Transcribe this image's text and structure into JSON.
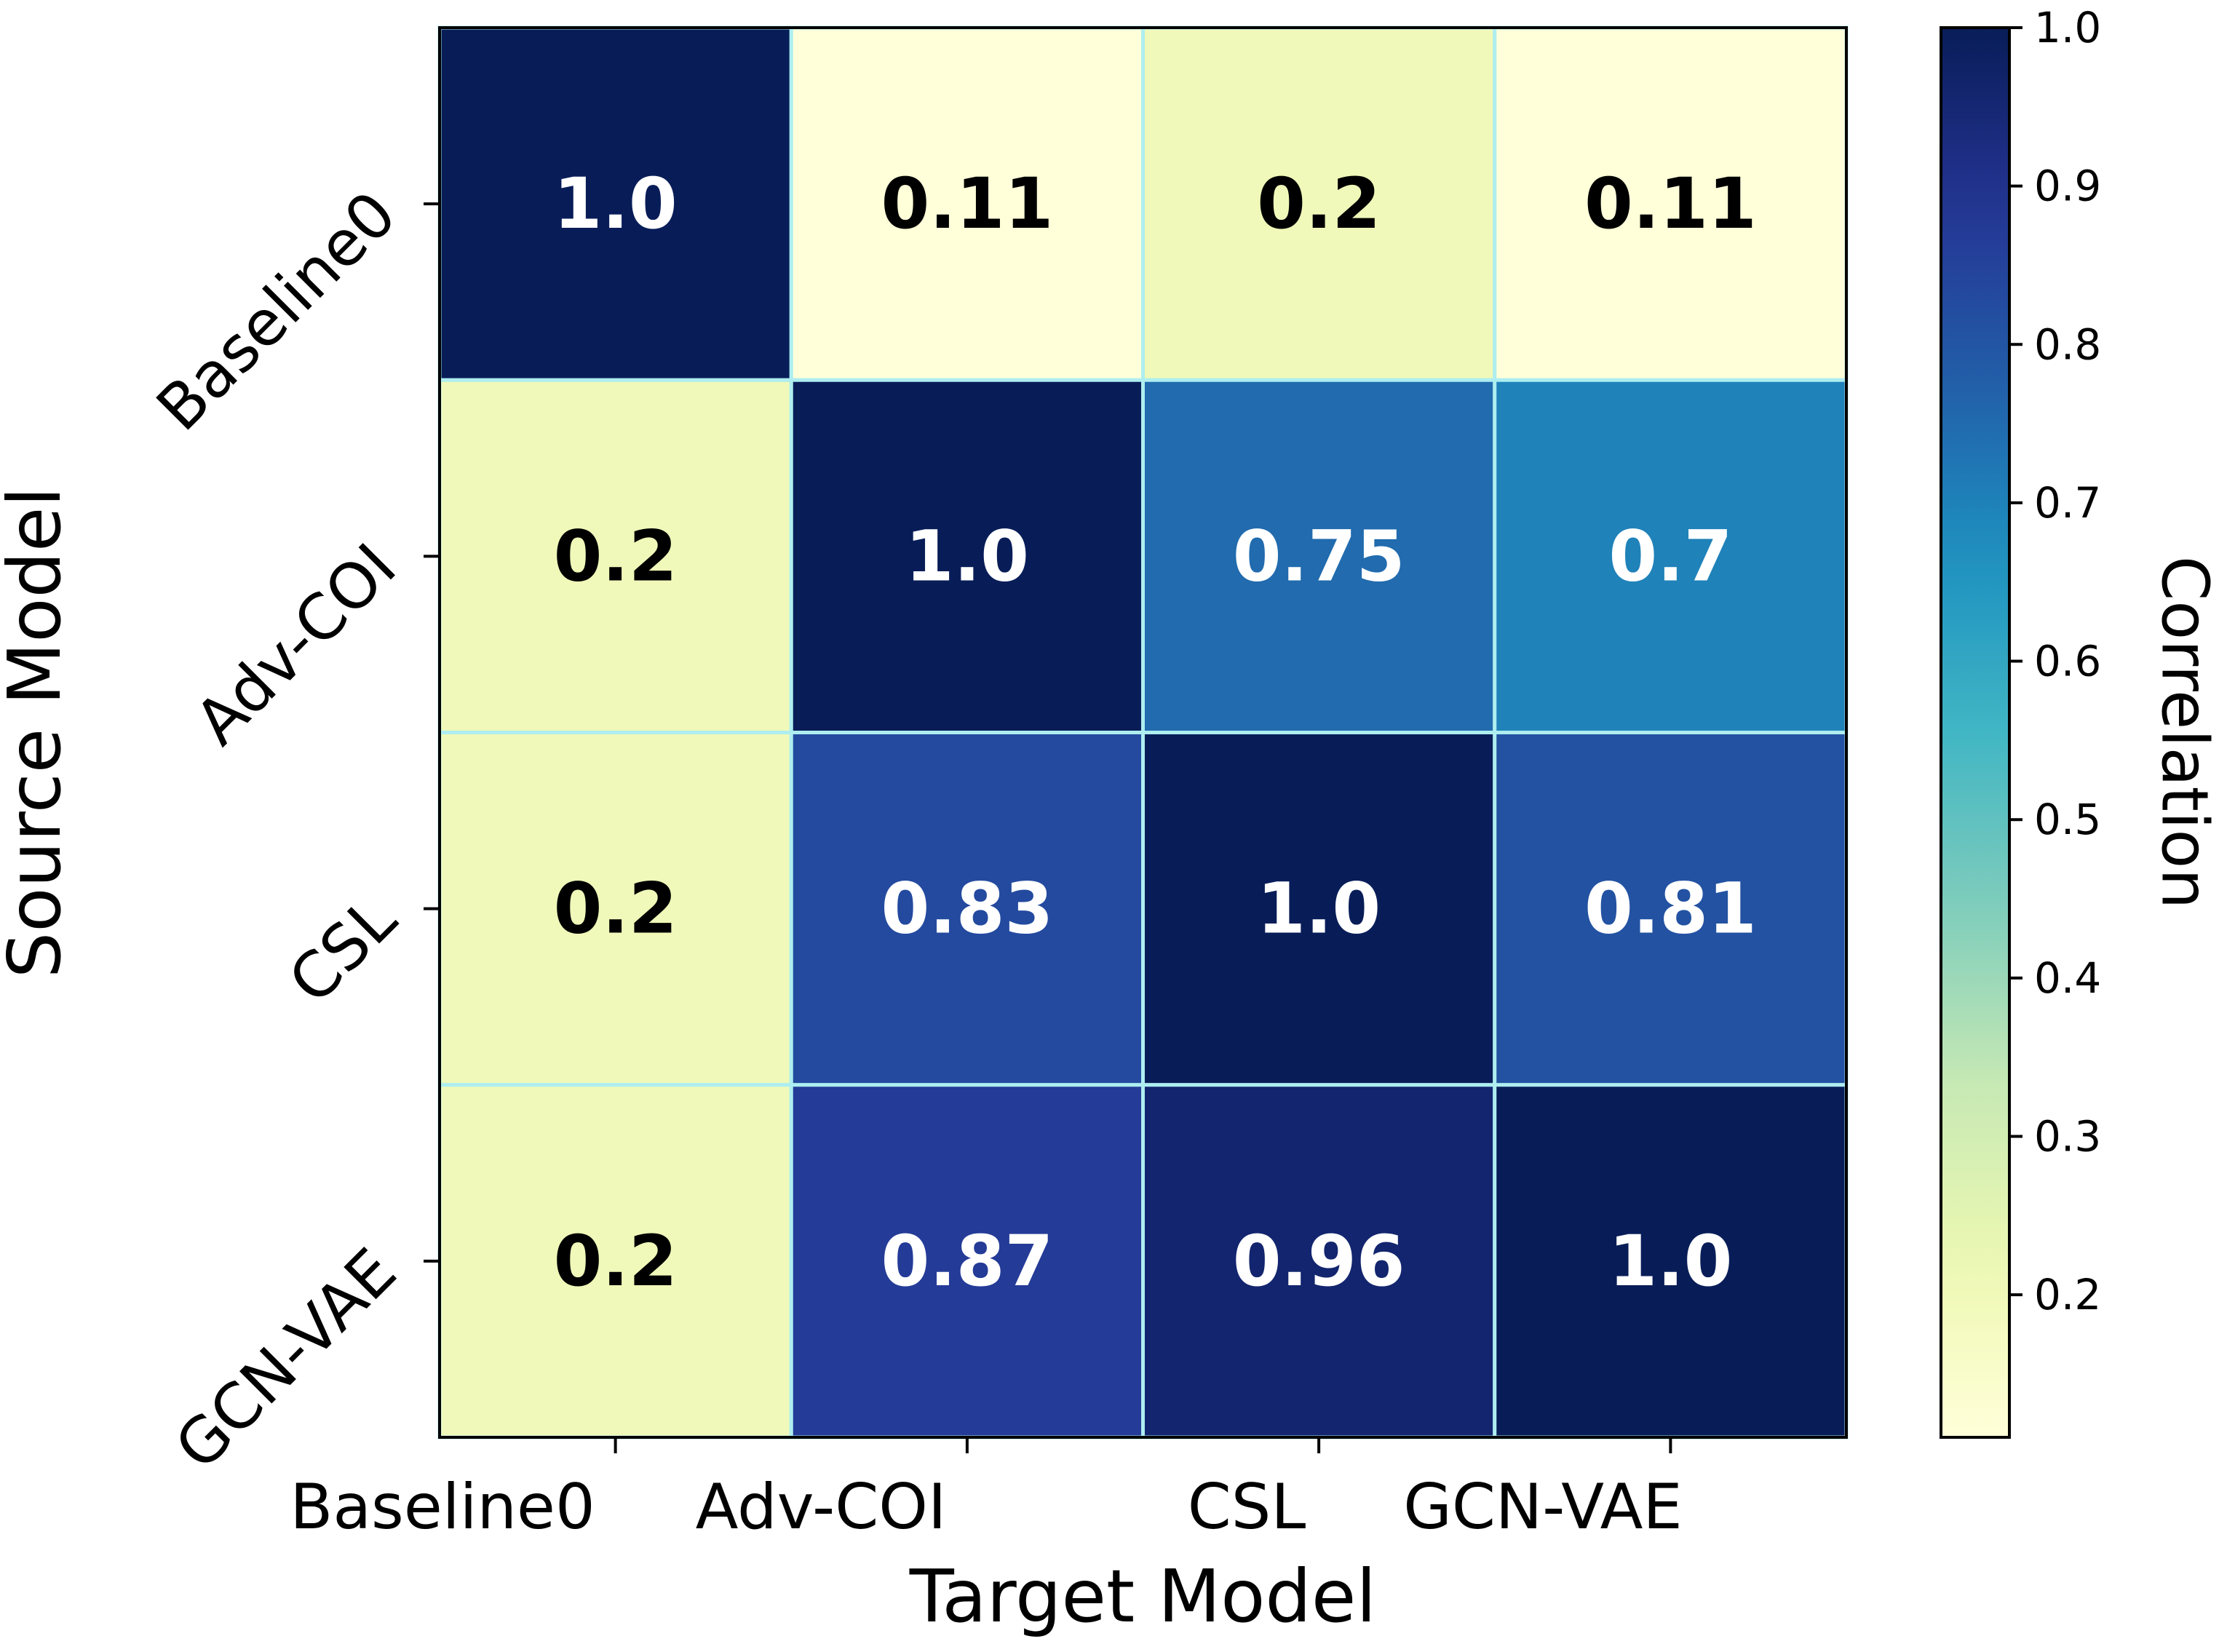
{
  "chart_data": {
    "type": "heatmap",
    "xlabel": "Target Model",
    "ylabel": "Source Model",
    "x_categories": [
      "Baseline0",
      "Adv-COI",
      "CSL",
      "GCN-VAE"
    ],
    "y_categories": [
      "Baseline0",
      "Adv-COI",
      "CSL",
      "GCN-VAE"
    ],
    "values": [
      [
        1.0,
        0.11,
        0.2,
        0.11
      ],
      [
        0.2,
        1.0,
        0.75,
        0.7
      ],
      [
        0.2,
        0.83,
        1.0,
        0.81
      ],
      [
        0.2,
        0.87,
        0.96,
        1.0
      ]
    ],
    "cell_labels": [
      [
        "1.0",
        "0.11",
        "0.2",
        "0.11"
      ],
      [
        "0.2",
        "1.0",
        "0.75",
        "0.7"
      ],
      [
        "0.2",
        "0.83",
        "1.0",
        "0.81"
      ],
      [
        "0.2",
        "0.87",
        "0.96",
        "1.0"
      ]
    ],
    "colorbar": {
      "label": "Correlation",
      "range": [
        0.11,
        1.0
      ],
      "ticks": [
        0.2,
        0.3,
        0.4,
        0.5,
        0.6,
        0.7,
        0.8,
        0.9,
        1.0
      ],
      "tick_labels": [
        "0.2",
        "0.3",
        "0.4",
        "0.5",
        "0.6",
        "0.7",
        "0.8",
        "0.9",
        "1.0"
      ],
      "colormap": "YlGnBu"
    },
    "colors": {
      "grid_lines": "#aeeef0",
      "text_dark": "#000000",
      "text_light": "#ffffff"
    },
    "grid": false,
    "legend": "colorbar-right"
  }
}
